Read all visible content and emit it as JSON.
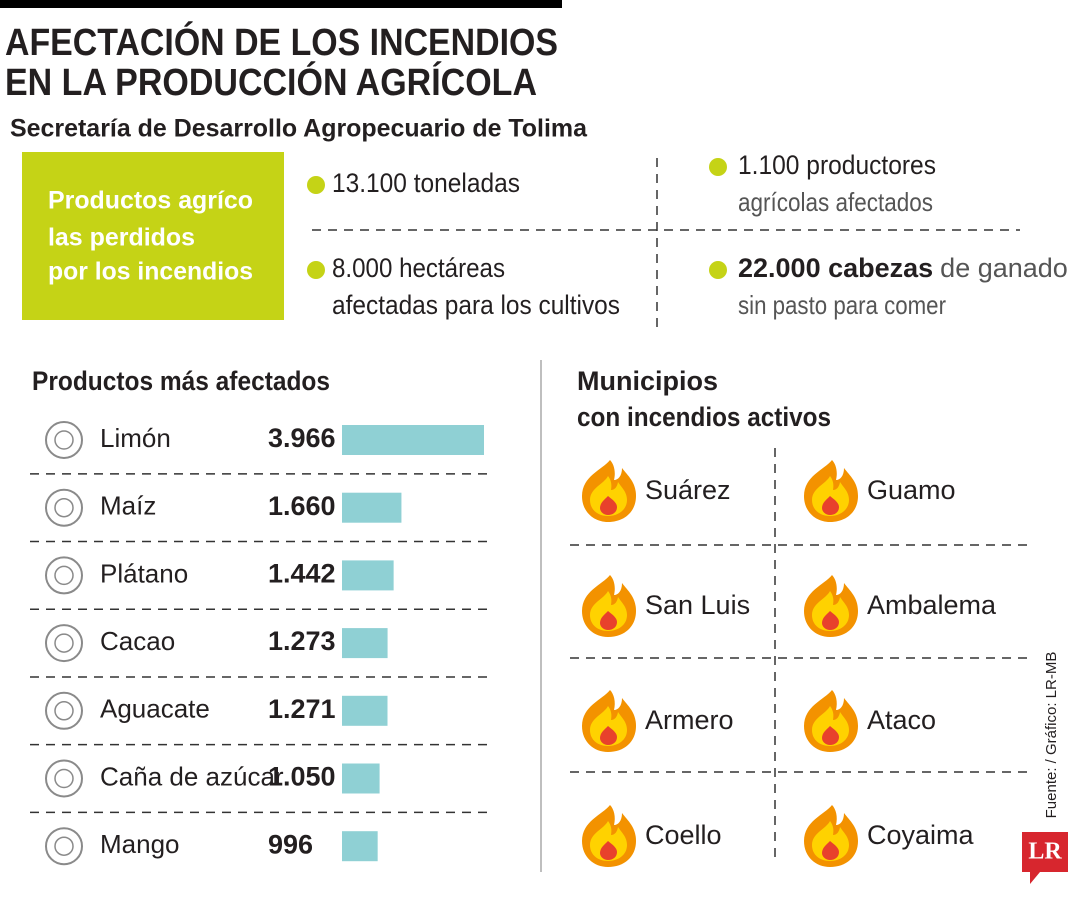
{
  "header": {
    "title": [
      "AFECTACIÓN DE LOS INCENDIOS",
      "EN LA PRODUCCIÓN AGRÍCOLA"
    ],
    "subtitle": "Secretaría de Desarrollo Agropecuario de Tolima"
  },
  "summary_box": [
    "Productos agríco",
    "las perdidos",
    "por los incendios"
  ],
  "stats": [
    {
      "lines": [
        "13.100 toneladas"
      ]
    },
    {
      "lines": [
        "1.100 productores",
        "agrícolas afectados"
      ]
    },
    {
      "lines": [
        "8.000 hectáreas",
        "afectadas para los cultivos"
      ]
    },
    {
      "lines": [
        {
          "bold": "22.000 cabezas",
          "regular": "de ganado"
        },
        "sin pasto para comer"
      ]
    }
  ],
  "chart_data": {
    "type": "bar",
    "title": "Productos más afectados",
    "categories": [
      "Limón",
      "Maíz",
      "Plátano",
      "Cacao",
      "Aguacate",
      "Caña de azúcar",
      "Mango"
    ],
    "values": [
      3966,
      1660,
      1442,
      1273,
      1271,
      1050,
      996
    ],
    "value_labels": [
      "3.966",
      "1.660",
      "1.442",
      "1.273",
      "1.271",
      "1.050",
      "996"
    ],
    "color": "#8fd0d4"
  },
  "municipalities": {
    "title": [
      "Municipios",
      "con incendios activos"
    ],
    "items": [
      "Suárez",
      "Guamo",
      "San Luis",
      "Ambalema",
      "Armero",
      "Ataco",
      "Coello",
      "Coyaima"
    ]
  },
  "source": "Fuente: / Gráfico: LR-MB",
  "logo": "LR"
}
